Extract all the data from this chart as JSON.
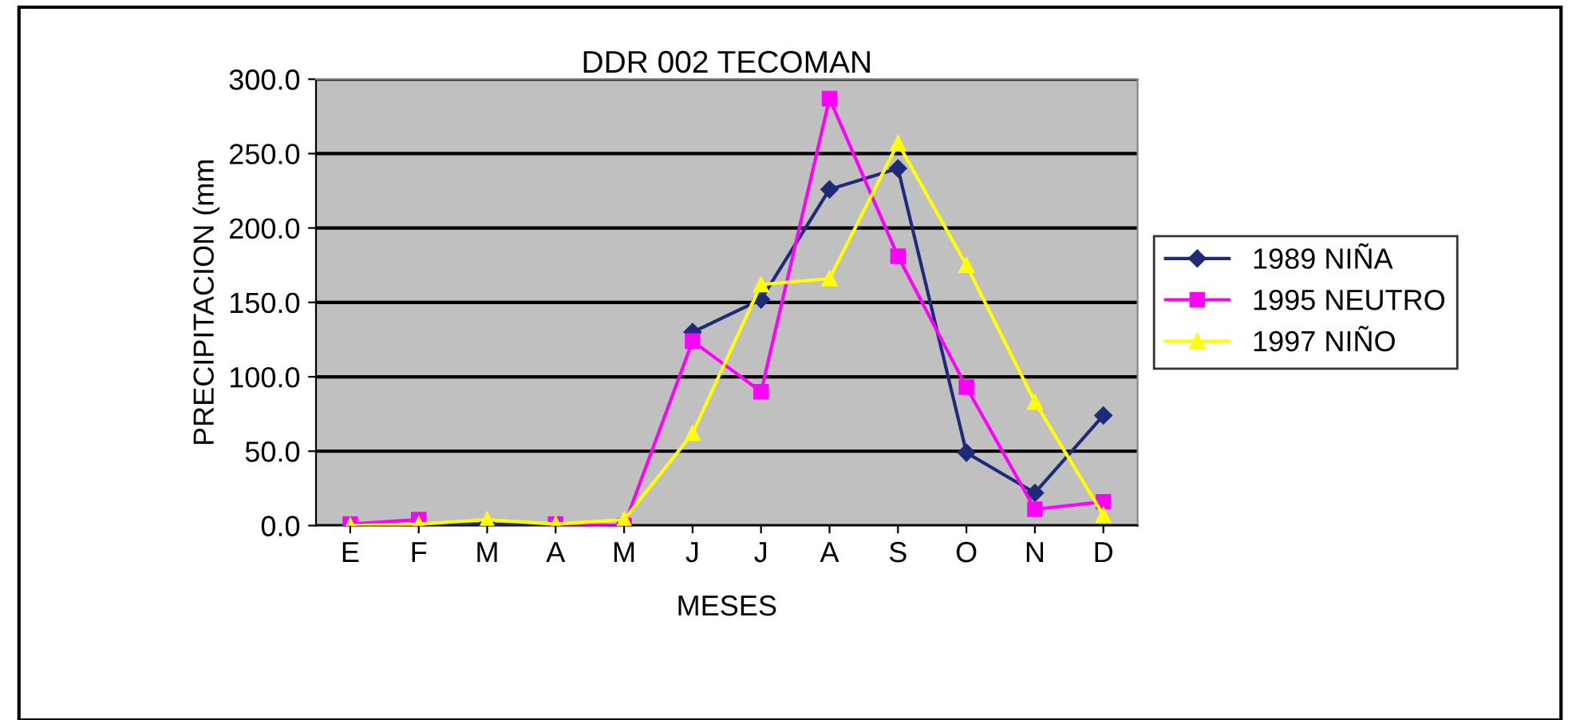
{
  "chart_data": {
    "type": "line",
    "title": "DDR 002 TECOMAN",
    "xlabel": "MESES",
    "ylabel": "PRECIPITACION (mm",
    "categories": [
      "E",
      "F",
      "M",
      "A",
      "M",
      "J",
      "J",
      "A",
      "S",
      "O",
      "N",
      "D"
    ],
    "series": [
      {
        "name": "1989 NIÑA",
        "color": "#1f2a7a",
        "marker": "diamond",
        "values": [
          0,
          1,
          1,
          0,
          null,
          130,
          152,
          226,
          240,
          49,
          22,
          74
        ]
      },
      {
        "name": "1995 NEUTRO",
        "color": "#ff00ff",
        "marker": "square",
        "values": [
          1,
          4,
          null,
          1,
          0,
          124,
          90,
          287,
          181,
          93,
          11,
          16
        ]
      },
      {
        "name": "1997 NIÑO",
        "color": "#ffff00",
        "marker": "triangle",
        "values": [
          0,
          1,
          4,
          1,
          4,
          62,
          162,
          166,
          257,
          175,
          83,
          7
        ]
      }
    ],
    "ylim": [
      0,
      300
    ],
    "yticks": [
      {
        "value": 0,
        "label": "0.0"
      },
      {
        "value": 50,
        "label": "50.0"
      },
      {
        "value": 100,
        "label": "100.0"
      },
      {
        "value": 150,
        "label": "150.0"
      },
      {
        "value": 200,
        "label": "200.0"
      },
      {
        "value": 250,
        "label": "250.0"
      },
      {
        "value": 300,
        "label": "300.0"
      }
    ],
    "grid": "y",
    "legend": "right",
    "line_style": "solid"
  }
}
